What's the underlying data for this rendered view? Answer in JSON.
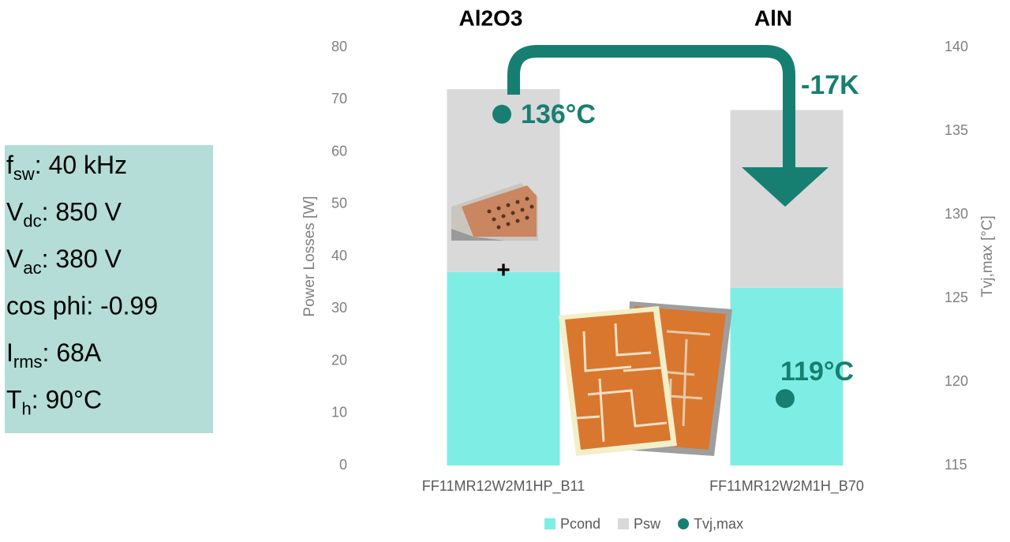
{
  "chart_data": {
    "type": "bar",
    "stacked": true,
    "annotations": {
      "left_title": "Al2O3",
      "right_title": "AlN",
      "delta": "-17K",
      "plus": "+"
    },
    "parameters": [
      {
        "main": "f",
        "sub": "sw",
        "rest": ": 40 kHz"
      },
      {
        "main": "V",
        "sub": "dc",
        "rest": ": 850 V"
      },
      {
        "main": "V",
        "sub": "ac",
        "rest": ": 380 V"
      },
      {
        "main": "cos phi: -0.99"
      },
      {
        "main": "I",
        "sub": "rms",
        "rest": ": 68A"
      },
      {
        "main": "T",
        "sub": "h",
        "rest": ": 90°C"
      }
    ],
    "categories": [
      "FF11MR12W2M1HP_B11",
      "FF11MR12W2M1H_B70"
    ],
    "series": [
      {
        "name": "Pcond",
        "color": "#7eeee4",
        "values": [
          37,
          34
        ]
      },
      {
        "name": "Psw",
        "color": "#d9d9d9",
        "values": [
          35,
          34
        ]
      },
      {
        "name": "Tvj,max",
        "color": "#177f72",
        "axis": "y2",
        "marker": "circle",
        "values": [
          136,
          119
        ],
        "value_labels": [
          "136°C",
          "119°C"
        ]
      }
    ],
    "ylabel": "Power Losses [W]",
    "y2label": "Tvj,max [°C]",
    "ylim": [
      0,
      80
    ],
    "yticks": [
      0,
      10,
      20,
      30,
      40,
      50,
      60,
      70,
      80
    ],
    "y2lim": [
      115,
      140
    ],
    "y2ticks": [
      115,
      120,
      125,
      130,
      135,
      140
    ],
    "grid": false,
    "legend": "bottom"
  }
}
